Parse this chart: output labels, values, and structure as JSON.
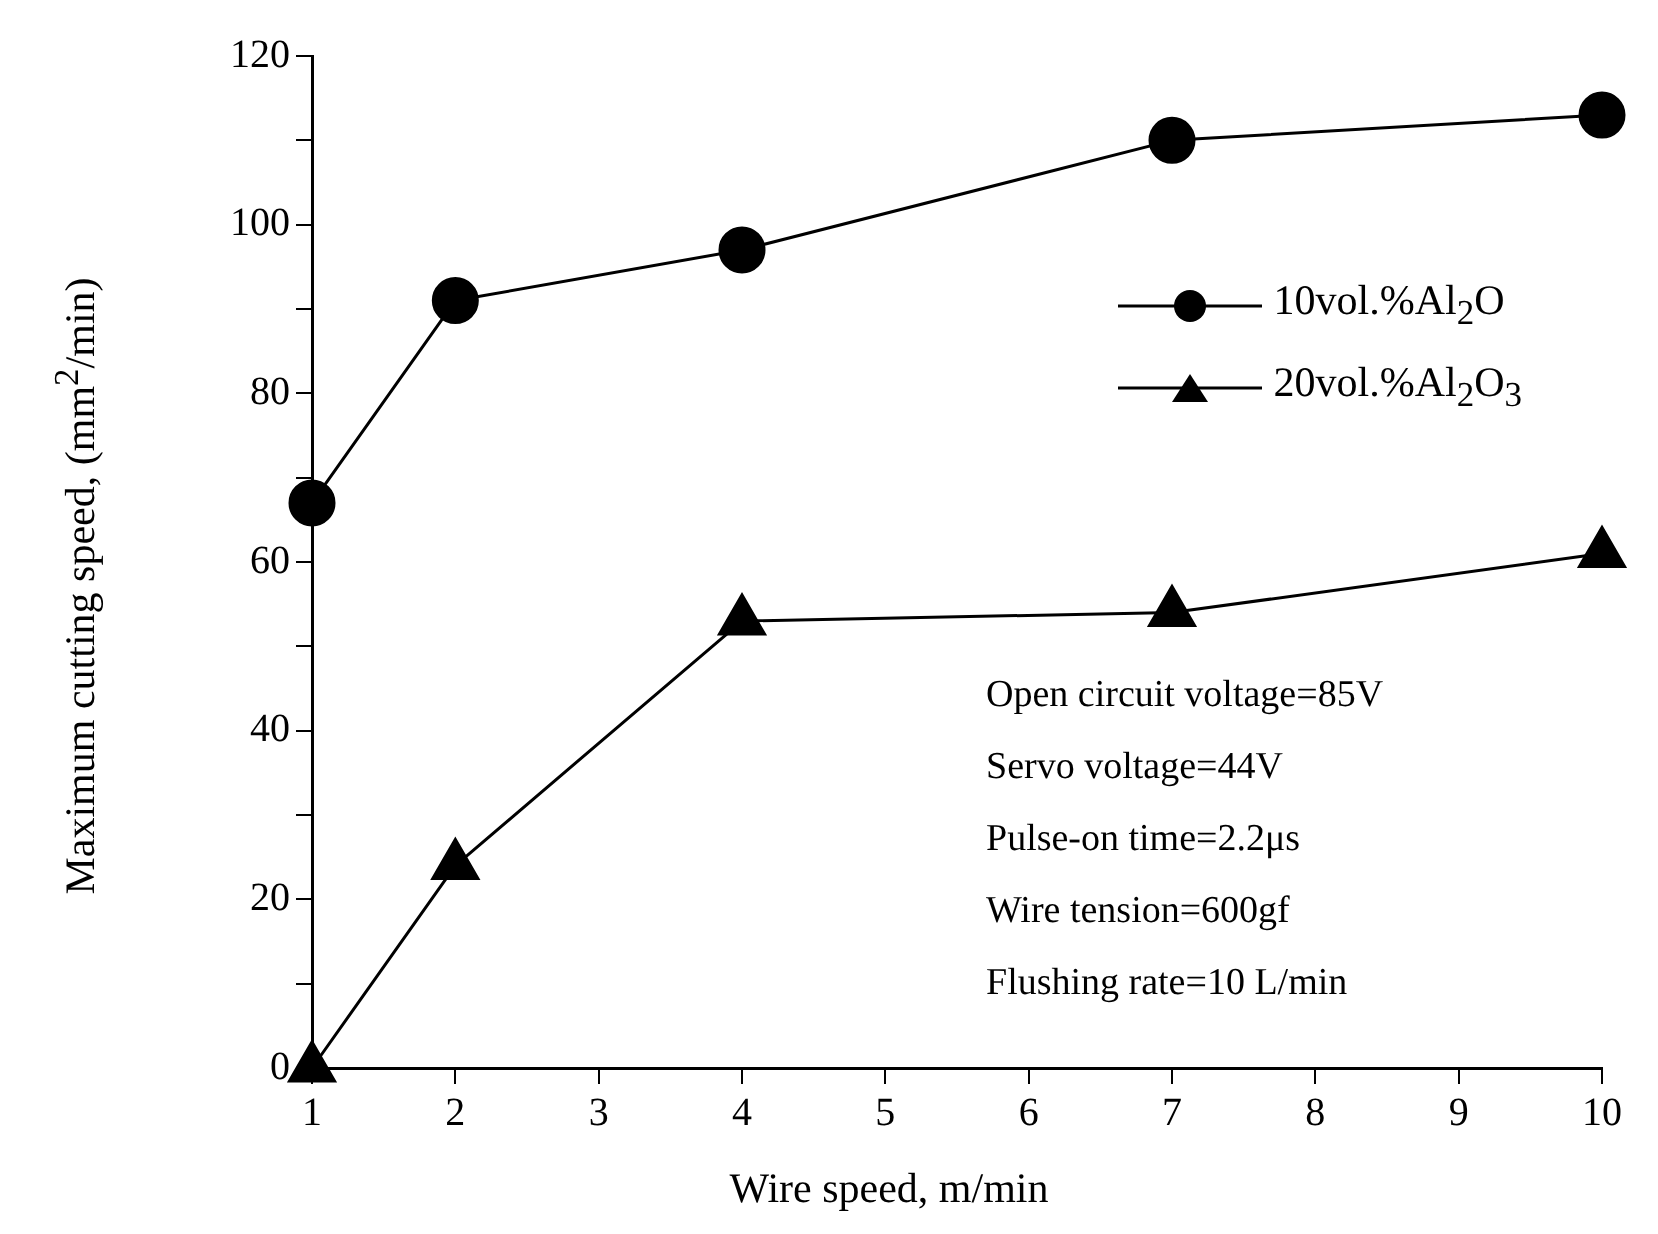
{
  "chart_data": {
    "type": "line",
    "xlabel": "Wire speed, m/min",
    "ylabel": "Maximum cutting speed, (mm$^{2}$/min)",
    "x": [
      1,
      2,
      4,
      7,
      10
    ],
    "series": [
      {
        "name": "10vol.%Al$_{2}$O",
        "color": "#000000",
        "marker": "circle",
        "values": [
          67,
          91,
          97,
          110,
          113
        ]
      },
      {
        "name": "20vol.%Al$_{2}$O$_{3}$",
        "color": "#000000",
        "marker": "triangle",
        "values": [
          0,
          24,
          53,
          54,
          61
        ]
      }
    ],
    "xlim": [
      1,
      10
    ],
    "xticks": [
      1,
      2,
      3,
      4,
      5,
      6,
      7,
      8,
      9,
      10
    ],
    "ylim": [
      0,
      120
    ],
    "yticks": [
      0,
      {
        "value": 10,
        "label": null
      },
      20,
      {
        "value": 30,
        "label": null
      },
      40,
      {
        "value": 50,
        "label": null
      },
      60,
      {
        "value": 70,
        "label": null
      },
      80,
      {
        "value": 90,
        "label": null
      },
      100,
      {
        "value": 110,
        "label": null
      },
      120
    ],
    "grid": false,
    "legend": "right",
    "line_style": "solid",
    "annotations": [
      "Open circuit voltage=85V",
      "Servo voltage=44V",
      "Pulse-on time=2.2μs",
      "Wire tension=600gf",
      "Flushing rate=10 L/min"
    ]
  }
}
